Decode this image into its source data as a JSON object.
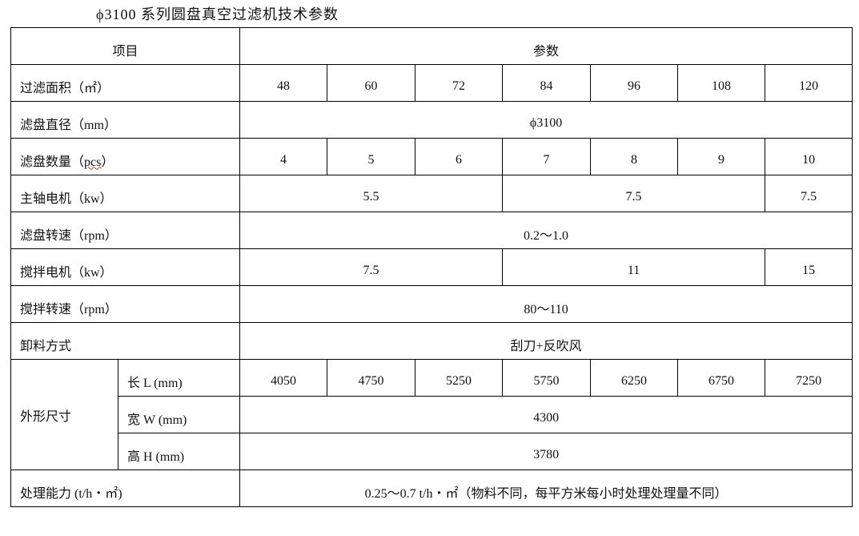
{
  "title": "ϕ3100 系列圆盘真空过滤机技术参数",
  "header": {
    "item": "项目",
    "params": "参数"
  },
  "rows": {
    "area": {
      "label": "过滤面积（㎡）",
      "values": [
        "48",
        "60",
        "72",
        "84",
        "96",
        "108",
        "120"
      ]
    },
    "diameter": {
      "label": "滤盘直径（mm）",
      "value": "ϕ3100"
    },
    "count": {
      "label_cn": "滤盘数量（",
      "label_unit": "pcs",
      "label_end": "）",
      "values": [
        "4",
        "5",
        "6",
        "7",
        "8",
        "9",
        "10"
      ]
    },
    "main_motor": {
      "label": "主轴电机（kw）",
      "values": [
        "5.5",
        "7.5",
        "7.5"
      ]
    },
    "disc_speed": {
      "label": "滤盘转速（rpm）",
      "value": "0.2～1.0"
    },
    "stir_motor": {
      "label": "搅拌电机（kw）",
      "values": [
        "7.5",
        "11",
        "15"
      ]
    },
    "stir_speed": {
      "label": "搅拌转速（rpm）",
      "value": "80～110"
    },
    "discharge": {
      "label": "卸料方式",
      "value": "刮刀+反吹风"
    },
    "dimensions": {
      "label": "外形尺寸",
      "length": {
        "label": "长 L (mm)",
        "values": [
          "4050",
          "4750",
          "5250",
          "5750",
          "6250",
          "6750",
          "7250"
        ]
      },
      "width": {
        "label": "宽 W (mm)",
        "value": "4300"
      },
      "height": {
        "label": "高 H (mm)",
        "value": "3780"
      }
    },
    "capacity": {
      "label": "处理能力 (t/h・㎡)",
      "value": "0.25～0.7 t/h・㎡（物料不同，每平方米每小时处理处理量不同）"
    }
  }
}
